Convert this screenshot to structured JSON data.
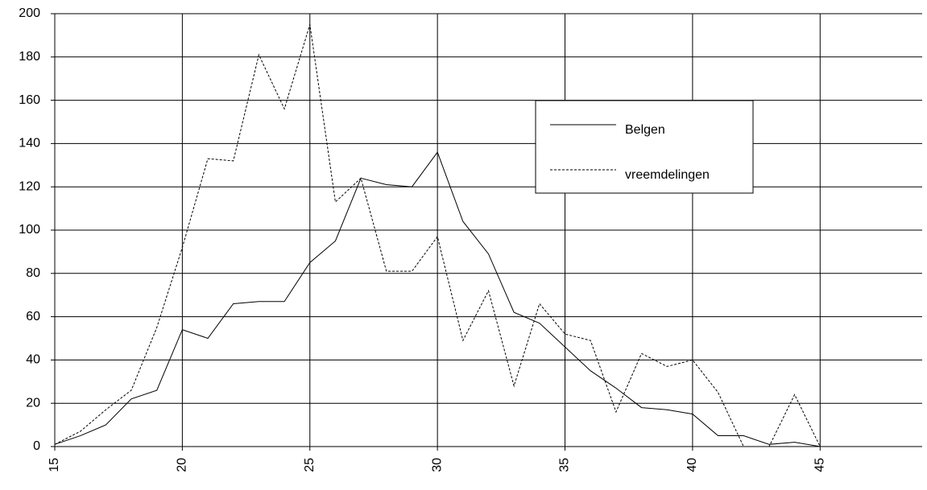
{
  "chart_data": {
    "type": "line",
    "x": [
      15,
      16,
      17,
      18,
      19,
      20,
      21,
      22,
      23,
      24,
      25,
      26,
      27,
      28,
      29,
      30,
      31,
      32,
      33,
      34,
      35,
      36,
      37,
      38,
      39,
      40,
      41,
      42,
      43,
      44,
      45,
      46,
      47,
      48,
      49
    ],
    "series": [
      {
        "name": "Belgen",
        "color": "#000000",
        "dash": "none",
        "values": [
          1,
          5,
          10,
          22,
          26,
          54,
          50,
          66,
          67,
          67,
          85,
          95,
          124,
          121,
          120,
          136,
          104,
          89,
          62,
          57,
          46,
          35,
          27,
          18,
          17,
          15,
          5,
          5,
          1,
          2,
          0,
          0,
          0,
          0,
          0
        ]
      },
      {
        "name": "vreemdelingen",
        "color": "#000000",
        "dash": "3,2",
        "values": [
          1,
          7,
          17,
          26,
          55,
          92,
          133,
          132,
          181,
          156,
          195,
          113,
          124,
          81,
          81,
          97,
          49,
          72,
          28,
          66,
          52,
          49,
          16,
          43,
          37,
          40,
          25,
          0,
          0,
          24,
          0,
          0,
          0,
          0,
          0
        ]
      }
    ],
    "xlim": [
      15,
      49
    ],
    "xticks": [
      15,
      20,
      25,
      30,
      35,
      40,
      45
    ],
    "ylim": [
      0,
      200
    ],
    "yticks": [
      0,
      20,
      40,
      60,
      80,
      100,
      120,
      140,
      160,
      180,
      200
    ],
    "grid": true
  }
}
